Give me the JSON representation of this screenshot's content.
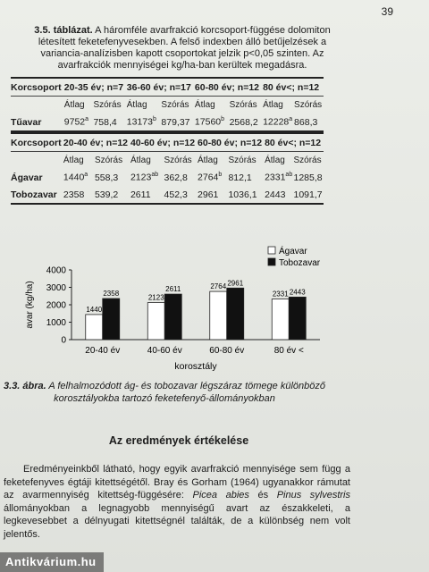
{
  "page_number": "39",
  "table_caption": {
    "label": "3.5. táblázat.",
    "text": "A háromféle avarfrakció korcsoport-függése dolomiton létesített feketefenyvesekben. A felső indexben álló betűjelzések a variancia-analízisben kapott csoportokat jelzik p<0,05 szinten. Az avarfrakciók mennyiségei kg/ha-ban kerültek megadásra."
  },
  "table1": {
    "header": [
      "Korcsoport",
      "20-35 év; n=7",
      "36-60 év; n=17",
      "60-80 év; n=12",
      "80 év<; n=12"
    ],
    "subheader": [
      "",
      "Átlag",
      "Szórás",
      "Átlag",
      "Szórás",
      "Átlag",
      "Szórás",
      "Átlag",
      "Szórás"
    ],
    "rows": [
      {
        "label": "Tűavar",
        "cells": [
          {
            "v": "9752",
            "s": "a"
          },
          {
            "v": "758,4",
            "s": ""
          },
          {
            "v": "13173",
            "s": "b"
          },
          {
            "v": "879,37",
            "s": ""
          },
          {
            "v": "17560",
            "s": "b"
          },
          {
            "v": "2568,2",
            "s": ""
          },
          {
            "v": "12228",
            "s": "a"
          },
          {
            "v": "868,3",
            "s": ""
          }
        ]
      }
    ]
  },
  "table2": {
    "header": [
      "Korcsoport",
      "20-40 év; n=12",
      "40-60 év; n=12",
      "60-80 év; n=12",
      "80 év<; n=12"
    ],
    "subheader": [
      "",
      "Átlag",
      "Szórás",
      "Átlag",
      "Szórás",
      "Átlag",
      "Szórás",
      "Átlag",
      "Szórás"
    ],
    "rows": [
      {
        "label": "Ágavar",
        "cells": [
          {
            "v": "1440",
            "s": "a"
          },
          {
            "v": "558,3",
            "s": ""
          },
          {
            "v": "2123",
            "s": "ab"
          },
          {
            "v": "362,8",
            "s": ""
          },
          {
            "v": "2764",
            "s": "b"
          },
          {
            "v": "812,1",
            "s": ""
          },
          {
            "v": "2331",
            "s": "ab"
          },
          {
            "v": "1285,8",
            "s": ""
          }
        ]
      },
      {
        "label": "Tobozavar",
        "cells": [
          {
            "v": "2358",
            "s": ""
          },
          {
            "v": "539,2",
            "s": ""
          },
          {
            "v": "2611",
            "s": ""
          },
          {
            "v": "452,3",
            "s": ""
          },
          {
            "v": "2961",
            "s": ""
          },
          {
            "v": "1036,1",
            "s": ""
          },
          {
            "v": "2443",
            "s": ""
          },
          {
            "v": "1091,7",
            "s": ""
          }
        ]
      }
    ]
  },
  "chart_data": {
    "type": "bar",
    "categories": [
      "20-40 év",
      "40-60 év",
      "60-80 év",
      "80 év <"
    ],
    "series": [
      {
        "name": "Ágavar",
        "values": [
          1440,
          2123,
          2764,
          2331
        ],
        "color": "#ffffff"
      },
      {
        "name": "Tobozavar",
        "values": [
          2358,
          2611,
          2961,
          2443
        ],
        "color": "#111111"
      }
    ],
    "xlabel": "korosztály",
    "ylabel": "avar (kg/ha)",
    "ylim": [
      0,
      4000
    ],
    "yticks": [
      0,
      1000,
      2000,
      3000,
      4000
    ],
    "legend": "top-right",
    "grid": false
  },
  "figure_caption": {
    "label": "3.3. ábra.",
    "text": "A felhalmozódott ág- és tobozavar légszáraz tömege különböző korosztályokba tartozó feketefenyő-állományokban"
  },
  "section_title": "Az eredmények értékelése",
  "body": {
    "part1": "Eredményeinkből látható, hogy egyik avarfrakció mennyisége sem függ a feketefenyves égtáji kitettségétől. Bray és Gorham (1964) ugyanakkor rámutat az avarmennyiség kitettség-függésére: ",
    "species1": "Picea abies",
    "conj": " és ",
    "species2": "Pinus sylvestris",
    "part2": " állományokban a legnagyobb mennyiségű avart az északkeleti, a legkevesebbet a délnyugati kitettségnél találták, de a különbség nem volt jelentős."
  },
  "watermark": "Antikvárium.hu"
}
